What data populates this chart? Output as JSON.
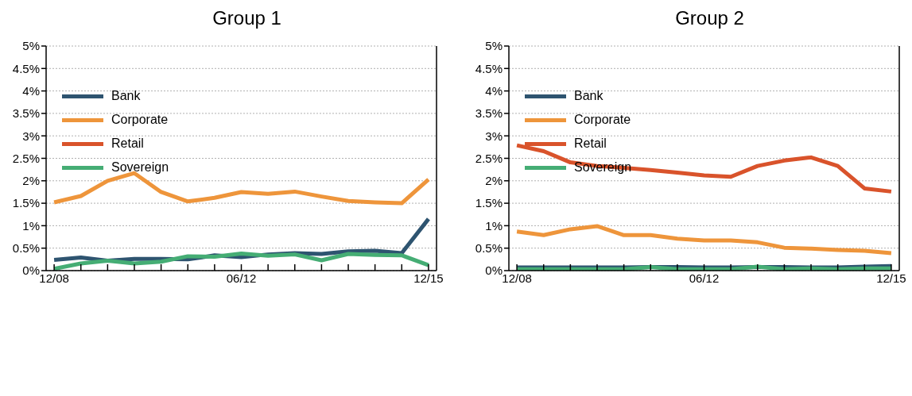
{
  "chart_data": [
    {
      "type": "line",
      "title": "Group 1",
      "categories": [
        "12/08",
        null,
        null,
        null,
        null,
        null,
        null,
        "06/12",
        null,
        null,
        null,
        null,
        null,
        null,
        "12/15"
      ],
      "series": [
        {
          "name": "Bank",
          "color": "#2e5470",
          "values": [
            0.24,
            0.29,
            0.22,
            0.26,
            0.26,
            0.25,
            0.34,
            0.3,
            0.36,
            0.39,
            0.37,
            0.43,
            0.44,
            0.39,
            1.15
          ]
        },
        {
          "name": "Corporate",
          "color": "#ee953b",
          "values": [
            1.52,
            1.66,
            2.0,
            2.17,
            1.75,
            1.54,
            1.62,
            1.75,
            1.71,
            1.76,
            1.65,
            1.55,
            1.52,
            1.5,
            2.03
          ]
        },
        {
          "name": "Retail",
          "color": "#d9532b",
          "values": [
            null,
            null,
            null,
            null,
            null,
            null,
            null,
            null,
            null,
            null,
            null,
            null,
            null,
            null,
            null
          ]
        },
        {
          "name": "Sovereign",
          "color": "#45ad74",
          "values": [
            0.04,
            0.16,
            0.22,
            0.16,
            0.2,
            0.32,
            0.31,
            0.38,
            0.33,
            0.36,
            0.23,
            0.37,
            0.35,
            0.34,
            0.12
          ]
        }
      ],
      "ylim": [
        0,
        5
      ],
      "yticks": [
        {
          "value": 0,
          "label": "0%"
        },
        {
          "value": 0.5,
          "label": "0.5%"
        },
        {
          "value": 1,
          "label": "1%"
        },
        {
          "value": 1.5,
          "label": "1.5%"
        },
        {
          "value": 2,
          "label": "2%"
        },
        {
          "value": 2.5,
          "label": "2.5%"
        },
        {
          "value": 3,
          "label": "3%"
        },
        {
          "value": 3.5,
          "label": "3.5%"
        },
        {
          "value": 4,
          "label": "4%"
        },
        {
          "value": 4.5,
          "label": "4.5%"
        },
        {
          "value": 5,
          "label": "5%"
        }
      ],
      "grid": "y",
      "legend": "top left",
      "marker": "none",
      "line_style": "solid"
    },
    {
      "type": "line",
      "title": "Group 2",
      "categories": [
        "12/08",
        null,
        null,
        null,
        null,
        null,
        null,
        "06/12",
        null,
        null,
        null,
        null,
        null,
        null,
        "12/15"
      ],
      "series": [
        {
          "name": "Bank",
          "color": "#2e5470",
          "values": [
            0.07,
            0.07,
            0.07,
            0.07,
            0.07,
            0.08,
            0.08,
            0.07,
            0.07,
            0.08,
            0.08,
            0.07,
            0.07,
            0.09,
            0.1
          ]
        },
        {
          "name": "Corporate",
          "color": "#ee953b",
          "values": [
            0.87,
            0.79,
            0.92,
            0.99,
            0.79,
            0.79,
            0.71,
            0.67,
            0.67,
            0.63,
            0.51,
            0.49,
            0.46,
            0.44,
            0.39
          ]
        },
        {
          "name": "Retail",
          "color": "#d9532b",
          "values": [
            2.79,
            2.66,
            2.41,
            2.33,
            2.29,
            2.24,
            2.18,
            2.12,
            2.09,
            2.33,
            2.45,
            2.52,
            2.33,
            1.83,
            1.76
          ]
        },
        {
          "name": "Sovereign",
          "color": "#45ad74",
          "values": [
            0.03,
            0.03,
            0.03,
            0.03,
            0.03,
            0.08,
            0.03,
            0.03,
            0.03,
            0.09,
            0.03,
            0.05,
            0.03,
            0.05,
            0.05
          ]
        }
      ],
      "ylim": [
        0,
        5
      ],
      "yticks": [
        {
          "value": 0,
          "label": "0%"
        },
        {
          "value": 0.5,
          "label": "0.5%"
        },
        {
          "value": 1,
          "label": "1%"
        },
        {
          "value": 1.5,
          "label": "1.5%"
        },
        {
          "value": 2,
          "label": "2%"
        },
        {
          "value": 2.5,
          "label": "2.5%"
        },
        {
          "value": 3,
          "label": "3%"
        },
        {
          "value": 3.5,
          "label": "3.5%"
        },
        {
          "value": 4,
          "label": "4%"
        },
        {
          "value": 4.5,
          "label": "4.5%"
        },
        {
          "value": 5,
          "label": "5%"
        }
      ],
      "grid": "y",
      "legend": "top left",
      "marker": "none",
      "line_style": "solid"
    }
  ]
}
